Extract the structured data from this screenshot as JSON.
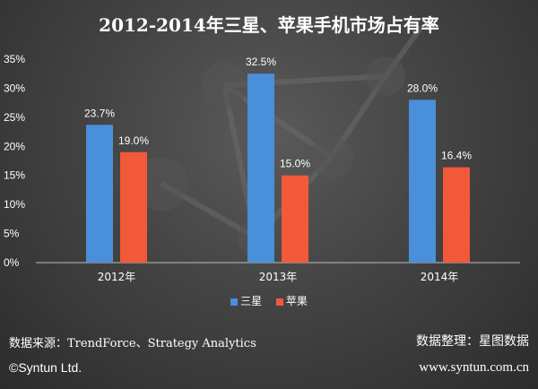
{
  "chart_data": {
    "type": "bar",
    "title": "2012-2014年三星、苹果手机市场占有率",
    "categories": [
      "2012年",
      "2013年",
      "2014年"
    ],
    "series": [
      {
        "name": "三星",
        "values": [
          23.7,
          32.5,
          28.0
        ],
        "labels": [
          "23.7%",
          "32.5%",
          "28.0%"
        ],
        "color": "#4a8fd9"
      },
      {
        "name": "苹果",
        "values": [
          19.0,
          15.0,
          16.4
        ],
        "labels": [
          "19.0%",
          "15.0%",
          "16.4%"
        ],
        "color": "#f2593a"
      }
    ],
    "ylim": [
      0,
      35
    ],
    "yticks": [
      "0%",
      "5%",
      "10%",
      "15%",
      "20%",
      "25%",
      "30%",
      "35%"
    ],
    "legend_position": "bottom",
    "grid": false
  },
  "footer": {
    "source": "数据来源：TrendForce、Strategy Analytics",
    "organizer": "数据整理：星图数据",
    "copyright": "©Syntun Ltd.",
    "url": "www.syntun.com.cn"
  }
}
